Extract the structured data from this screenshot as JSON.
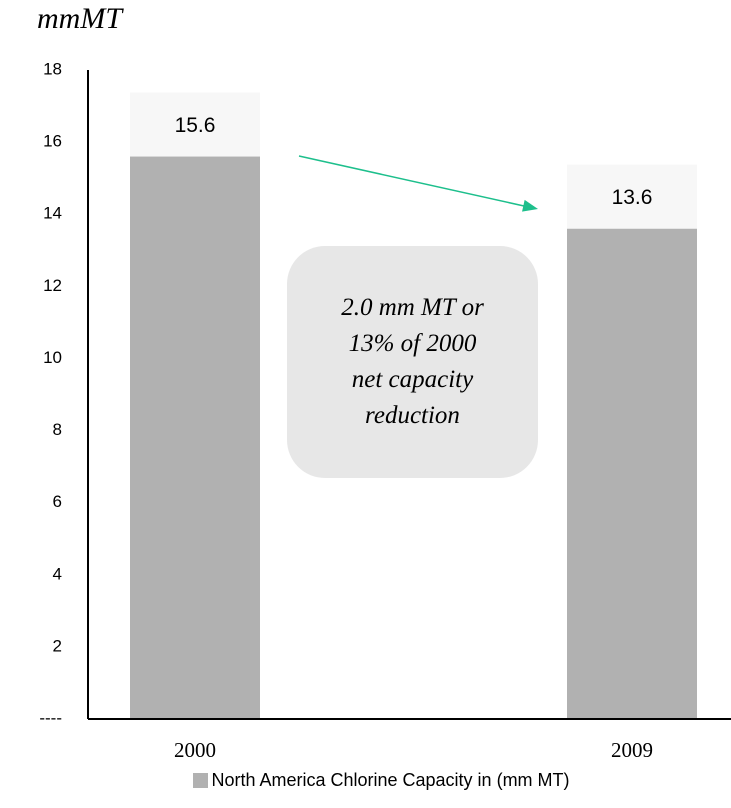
{
  "chart_data": {
    "type": "bar",
    "title": "mmMT",
    "categories": [
      "2000",
      "2009"
    ],
    "series": [
      {
        "name": "North America Chlorine Capacity in (mm MT)",
        "values": [
          15.6,
          13.6
        ],
        "color": "#b1b1b1"
      }
    ],
    "data_labels": [
      "15.6",
      "13.6"
    ],
    "ylim": [
      0,
      18
    ],
    "yticks": [
      0,
      2,
      4,
      6,
      8,
      10,
      12,
      14,
      16,
      18
    ],
    "ytick_labels": [
      "----",
      "2",
      "4",
      "6",
      "8",
      "10",
      "12",
      "14",
      "16",
      "18"
    ],
    "xlabel": "",
    "ylabel": "",
    "grid": false,
    "legend": "bottom",
    "annotation": "2.0 mm MT or 13% of 2000 net capacity reduction",
    "arrow_color": "#1dbf8c"
  }
}
